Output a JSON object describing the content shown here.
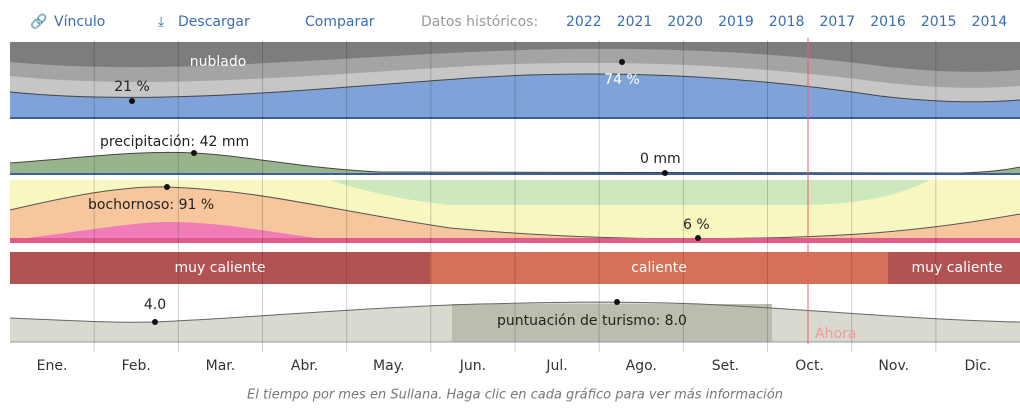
{
  "toolbar": {
    "links": [
      "Vínculo",
      "Descargar",
      "Comparar"
    ],
    "history_label": "Datos históricos:",
    "years": [
      "2022",
      "2021",
      "2020",
      "2019",
      "2018",
      "2017",
      "2016",
      "2015",
      "2014"
    ]
  },
  "panels": {
    "clouds": {
      "title": "nublado",
      "min_label": "21 %",
      "max_label": "74 %"
    },
    "precipitation": {
      "max_label": "precipitación: 42 mm",
      "min_label": "0 mm"
    },
    "humidity": {
      "max_label": "bochornoso: 91 %",
      "min_label": "6 %"
    },
    "temperature": {
      "bands": [
        "muy caliente",
        "caliente",
        "muy caliente"
      ]
    },
    "tourism": {
      "min_label": "4.0",
      "max_label": "puntuación de turismo: 8.0"
    }
  },
  "now_label": "Ahora",
  "months": [
    "Ene.",
    "Feb.",
    "Mar.",
    "Abr.",
    "May.",
    "Jun.",
    "Jul.",
    "Ago.",
    "Set.",
    "Oct.",
    "Nov.",
    "Dic."
  ],
  "caption": "El tiempo por mes en Sullana. Haga clic en cada gráfico para ver más información"
}
